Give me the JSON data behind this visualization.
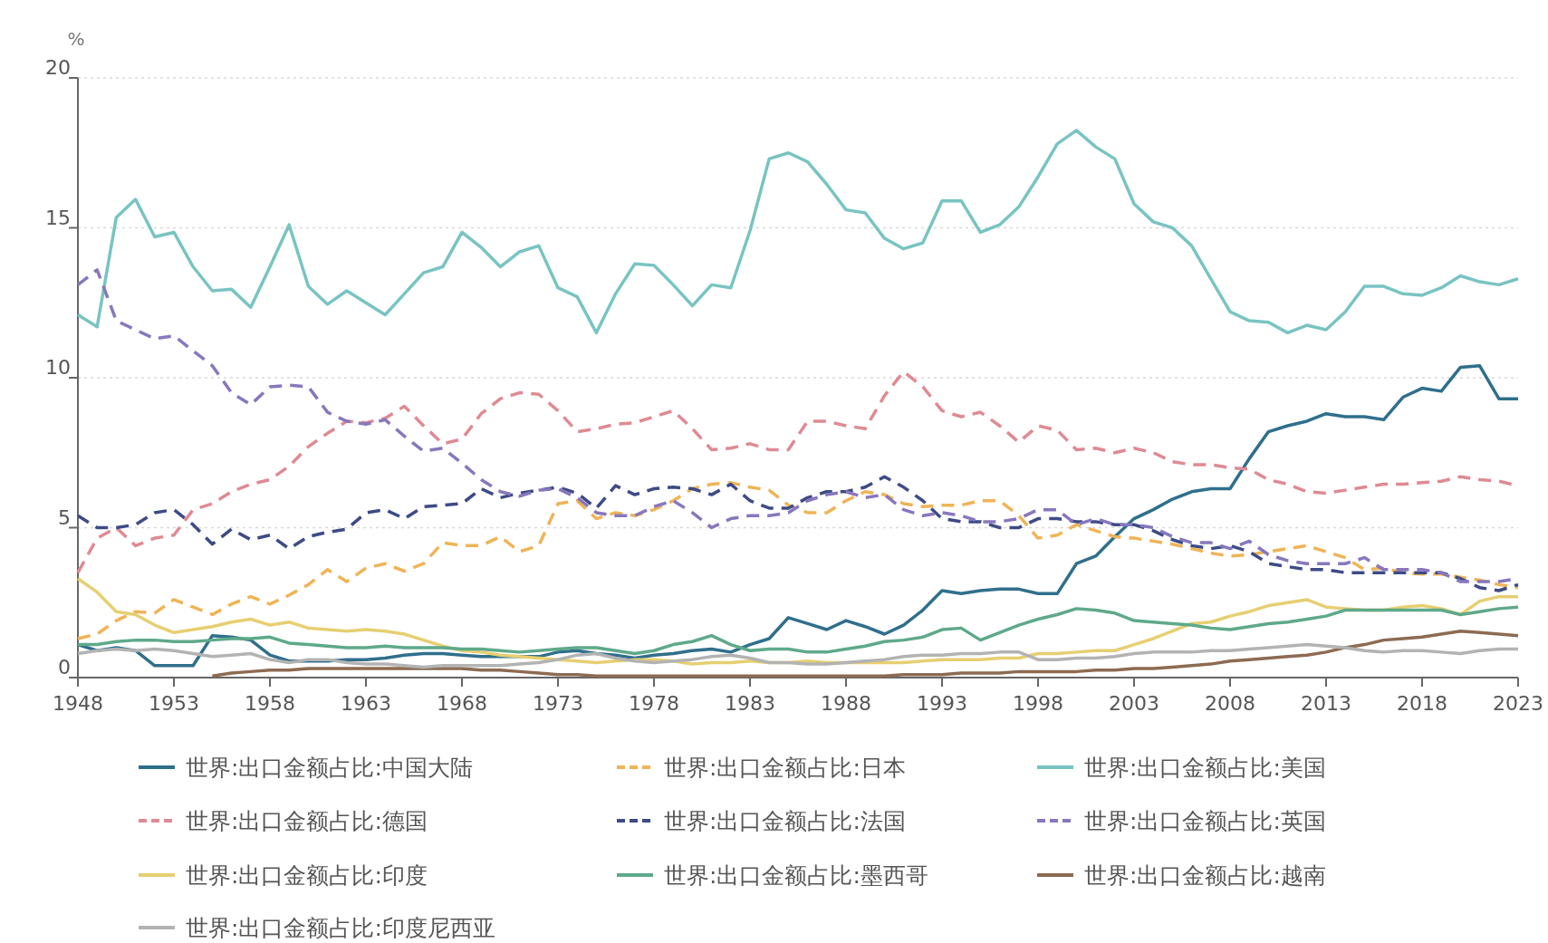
{
  "chart_data": {
    "type": "line",
    "ylabel": "%",
    "xlim": [
      1948,
      2023
    ],
    "xticks": [
      1948,
      1953,
      1958,
      1963,
      1968,
      1973,
      1978,
      1983,
      1988,
      1993,
      1998,
      2003,
      2008,
      2013,
      2018,
      2023
    ],
    "ylim": [
      0,
      20
    ],
    "yticks": [
      0,
      5,
      10,
      15,
      20
    ],
    "grid": "y",
    "legend": "bottom",
    "x": [
      1948,
      1949,
      1950,
      1951,
      1952,
      1953,
      1954,
      1955,
      1956,
      1957,
      1958,
      1959,
      1960,
      1961,
      1962,
      1963,
      1964,
      1965,
      1966,
      1967,
      1968,
      1969,
      1970,
      1971,
      1972,
      1973,
      1974,
      1975,
      1976,
      1977,
      1978,
      1979,
      1980,
      1981,
      1982,
      1983,
      1984,
      1985,
      1986,
      1987,
      1988,
      1989,
      1990,
      1991,
      1992,
      1993,
      1994,
      1995,
      1996,
      1997,
      1998,
      1999,
      2000,
      2001,
      2002,
      2003,
      2004,
      2005,
      2006,
      2007,
      2008,
      2009,
      2010,
      2011,
      2012,
      2013,
      2014,
      2015,
      2016,
      2017,
      2018,
      2019,
      2020,
      2021,
      2022,
      2023
    ],
    "series": [
      {
        "name": "世界:出口金额占比:中国大陆",
        "color": "#2f6f8c",
        "line_style": "solid",
        "values": [
          1.1,
          0.9,
          1.0,
          0.9,
          0.4,
          0.4,
          0.4,
          1.4,
          1.35,
          1.25,
          0.75,
          0.55,
          0.55,
          0.55,
          0.6,
          0.6,
          0.65,
          0.75,
          0.8,
          0.8,
          0.75,
          0.7,
          0.7,
          0.7,
          0.7,
          0.85,
          0.9,
          0.8,
          0.75,
          0.65,
          0.75,
          0.8,
          0.9,
          0.95,
          0.85,
          1.1,
          1.3,
          2.0,
          1.8,
          1.6,
          1.9,
          1.7,
          1.45,
          1.75,
          2.25,
          2.9,
          2.8,
          2.9,
          2.95,
          2.95,
          2.8,
          2.8,
          3.8,
          4.05,
          4.7,
          5.3,
          5.6,
          5.95,
          6.2,
          6.3,
          6.3,
          7.3,
          8.2,
          8.4,
          8.55,
          8.8,
          8.7,
          8.7,
          8.6,
          9.35,
          9.65,
          9.55,
          10.35,
          10.4,
          9.3,
          9.3
        ]
      },
      {
        "name": "世界:出口金额占比:日本",
        "color": "#efb457",
        "line_style": "dashed",
        "values": [
          1.3,
          1.45,
          1.9,
          2.2,
          2.15,
          2.6,
          2.35,
          2.1,
          2.45,
          2.7,
          2.45,
          2.75,
          3.1,
          3.6,
          3.2,
          3.65,
          3.8,
          3.55,
          3.8,
          4.5,
          4.4,
          4.4,
          4.7,
          4.2,
          4.4,
          5.8,
          5.9,
          5.3,
          5.5,
          5.4,
          5.6,
          5.9,
          6.3,
          6.45,
          6.5,
          6.35,
          6.25,
          5.75,
          5.5,
          5.5,
          5.9,
          6.2,
          6.1,
          5.8,
          5.7,
          5.75,
          5.75,
          5.9,
          5.9,
          5.4,
          4.65,
          4.75,
          5.1,
          4.9,
          4.7,
          4.65,
          4.55,
          4.45,
          4.3,
          4.15,
          4.05,
          4.1,
          4.2,
          4.3,
          4.4,
          4.2,
          4.0,
          3.6,
          3.65,
          3.5,
          3.45,
          3.45,
          3.35,
          3.25,
          3.1,
          3.0
        ]
      },
      {
        "name": "世界:出口金额占比:美国",
        "color": "#78c4c2",
        "line_style": "solid",
        "values": [
          12.1,
          11.7,
          15.35,
          15.95,
          14.7,
          14.85,
          13.7,
          12.9,
          12.95,
          12.35,
          13.7,
          15.1,
          13.05,
          12.45,
          12.9,
          12.5,
          12.1,
          12.8,
          13.5,
          13.7,
          14.85,
          14.35,
          13.7,
          14.2,
          14.4,
          13.0,
          12.7,
          11.5,
          12.8,
          13.8,
          13.75,
          13.1,
          12.4,
          13.1,
          13.0,
          14.9,
          17.3,
          17.5,
          17.2,
          16.45,
          15.6,
          15.5,
          14.65,
          14.3,
          14.5,
          15.9,
          15.9,
          14.85,
          15.1,
          15.7,
          16.7,
          17.8,
          18.25,
          17.7,
          17.3,
          15.8,
          15.2,
          15.0,
          14.4,
          13.3,
          12.2,
          11.9,
          11.85,
          11.5,
          11.75,
          11.6,
          12.2,
          13.05,
          13.05,
          12.8,
          12.75,
          13.0,
          13.4,
          13.2,
          13.1,
          13.3
        ]
      },
      {
        "name": "世界:出口金额占比:德国",
        "color": "#df8a93",
        "line_style": "dashed",
        "values": [
          3.5,
          4.65,
          5.0,
          4.4,
          4.65,
          4.75,
          5.6,
          5.8,
          6.2,
          6.45,
          6.6,
          7.05,
          7.7,
          8.15,
          8.55,
          8.5,
          8.65,
          9.05,
          8.4,
          7.8,
          7.95,
          8.8,
          9.3,
          9.5,
          9.45,
          8.9,
          8.2,
          8.3,
          8.45,
          8.5,
          8.7,
          8.9,
          8.3,
          7.6,
          7.65,
          7.8,
          7.6,
          7.6,
          8.55,
          8.55,
          8.4,
          8.3,
          9.4,
          10.2,
          9.7,
          8.9,
          8.7,
          8.85,
          8.4,
          7.85,
          8.4,
          8.25,
          7.6,
          7.65,
          7.5,
          7.65,
          7.5,
          7.2,
          7.1,
          7.1,
          7.0,
          6.95,
          6.6,
          6.45,
          6.2,
          6.15,
          6.25,
          6.35,
          6.45,
          6.45,
          6.5,
          6.55,
          6.7,
          6.6,
          6.55,
          6.4
        ]
      },
      {
        "name": "世界:出口金额占比:法国",
        "color": "#3d4b86",
        "line_style": "dashed",
        "values": [
          5.4,
          5.0,
          5.0,
          5.1,
          5.5,
          5.6,
          5.1,
          4.45,
          4.95,
          4.6,
          4.75,
          4.3,
          4.7,
          4.85,
          4.95,
          5.5,
          5.6,
          5.3,
          5.7,
          5.75,
          5.8,
          6.3,
          6.0,
          6.15,
          6.25,
          6.35,
          6.15,
          5.65,
          6.4,
          6.1,
          6.3,
          6.35,
          6.3,
          6.1,
          6.45,
          5.9,
          5.65,
          5.65,
          6.0,
          6.2,
          6.2,
          6.35,
          6.7,
          6.35,
          5.9,
          5.3,
          5.2,
          5.2,
          5.0,
          5.0,
          5.3,
          5.3,
          5.2,
          5.2,
          5.1,
          5.1,
          4.9,
          4.6,
          4.4,
          4.3,
          4.4,
          4.2,
          3.8,
          3.7,
          3.6,
          3.6,
          3.5,
          3.5,
          3.5,
          3.5,
          3.5,
          3.5,
          3.3,
          3.0,
          2.9,
          3.1
        ]
      },
      {
        "name": "世界:出口金额占比:英国",
        "color": "#8877bd",
        "line_style": "dashed",
        "values": [
          13.1,
          13.6,
          11.9,
          11.6,
          11.3,
          11.4,
          10.9,
          10.4,
          9.5,
          9.1,
          9.7,
          9.75,
          9.7,
          8.85,
          8.55,
          8.45,
          8.6,
          8.05,
          7.55,
          7.65,
          7.15,
          6.6,
          6.2,
          6.05,
          6.25,
          6.3,
          6.0,
          5.5,
          5.4,
          5.4,
          5.7,
          5.9,
          5.5,
          5.0,
          5.3,
          5.4,
          5.4,
          5.5,
          5.9,
          6.1,
          6.2,
          6.0,
          6.1,
          5.6,
          5.4,
          5.5,
          5.4,
          5.2,
          5.2,
          5.3,
          5.6,
          5.6,
          5.1,
          5.3,
          5.1,
          5.1,
          5.0,
          4.7,
          4.5,
          4.5,
          4.3,
          4.55,
          4.1,
          3.9,
          3.8,
          3.8,
          3.8,
          4.0,
          3.6,
          3.6,
          3.6,
          3.5,
          3.2,
          3.2,
          3.2,
          3.3
        ]
      },
      {
        "name": "世界:出口金额占比:印度",
        "color": "#e6cf72",
        "line_style": "solid",
        "values": [
          3.3,
          2.85,
          2.2,
          2.1,
          1.75,
          1.5,
          1.6,
          1.7,
          1.85,
          1.95,
          1.75,
          1.85,
          1.65,
          1.6,
          1.55,
          1.6,
          1.55,
          1.45,
          1.25,
          1.05,
          0.9,
          0.85,
          0.75,
          0.7,
          0.65,
          0.6,
          0.55,
          0.5,
          0.55,
          0.6,
          0.6,
          0.55,
          0.45,
          0.5,
          0.5,
          0.55,
          0.5,
          0.5,
          0.55,
          0.5,
          0.5,
          0.5,
          0.5,
          0.5,
          0.55,
          0.6,
          0.6,
          0.6,
          0.65,
          0.65,
          0.8,
          0.8,
          0.85,
          0.9,
          0.9,
          1.1,
          1.3,
          1.55,
          1.8,
          1.85,
          2.05,
          2.2,
          2.4,
          2.5,
          2.6,
          2.35,
          2.3,
          2.25,
          2.25,
          2.35,
          2.4,
          2.3,
          2.1,
          2.55,
          2.7,
          2.7
        ]
      },
      {
        "name": "世界:出口金额占比:墨西哥",
        "color": "#5ea98a",
        "line_style": "solid",
        "values": [
          1.1,
          1.1,
          1.2,
          1.25,
          1.25,
          1.2,
          1.2,
          1.25,
          1.3,
          1.3,
          1.35,
          1.15,
          1.1,
          1.05,
          1.0,
          1.0,
          1.05,
          1.0,
          1.0,
          1.0,
          0.95,
          0.95,
          0.9,
          0.85,
          0.9,
          0.95,
          1.0,
          1.0,
          0.9,
          0.8,
          0.9,
          1.1,
          1.2,
          1.4,
          1.1,
          0.9,
          0.95,
          0.95,
          0.85,
          0.85,
          0.95,
          1.05,
          1.2,
          1.25,
          1.35,
          1.6,
          1.65,
          1.25,
          1.5,
          1.75,
          1.95,
          2.1,
          2.3,
          2.25,
          2.15,
          1.9,
          1.85,
          1.8,
          1.75,
          1.65,
          1.6,
          1.7,
          1.8,
          1.85,
          1.95,
          2.05,
          2.25,
          2.25,
          2.25,
          2.25,
          2.25,
          2.25,
          2.1,
          2.2,
          2.3,
          2.35
        ]
      },
      {
        "name": "世界:出口金额占比:越南",
        "color": "#8c6b52",
        "line_style": "solid",
        "values": [
          null,
          null,
          null,
          null,
          null,
          null,
          null,
          0.05,
          0.15,
          0.2,
          0.25,
          0.25,
          0.3,
          0.3,
          0.3,
          0.3,
          0.3,
          0.3,
          0.3,
          0.3,
          0.3,
          0.25,
          0.25,
          0.2,
          0.15,
          0.1,
          0.1,
          0.05,
          0.05,
          0.05,
          0.05,
          0.05,
          0.05,
          0.05,
          0.05,
          0.05,
          0.05,
          0.05,
          0.05,
          0.05,
          0.05,
          0.05,
          0.05,
          0.1,
          0.1,
          0.1,
          0.15,
          0.15,
          0.15,
          0.2,
          0.2,
          0.2,
          0.2,
          0.25,
          0.25,
          0.3,
          0.3,
          0.35,
          0.4,
          0.45,
          0.55,
          0.6,
          0.65,
          0.7,
          0.75,
          0.85,
          1.0,
          1.1,
          1.25,
          1.3,
          1.35,
          1.45,
          1.55,
          1.5,
          1.45,
          1.4
        ]
      },
      {
        "name": "世界:出口金额占比:印度尼西亚",
        "color": "#b3b3b3",
        "line_style": "solid",
        "values": [
          0.8,
          0.9,
          0.95,
          0.9,
          0.95,
          0.9,
          0.8,
          0.7,
          0.75,
          0.8,
          0.6,
          0.5,
          0.6,
          0.6,
          0.5,
          0.45,
          0.45,
          0.4,
          0.35,
          0.4,
          0.4,
          0.4,
          0.4,
          0.45,
          0.5,
          0.6,
          0.75,
          0.8,
          0.65,
          0.55,
          0.5,
          0.55,
          0.6,
          0.7,
          0.75,
          0.65,
          0.5,
          0.5,
          0.45,
          0.45,
          0.5,
          0.55,
          0.6,
          0.7,
          0.75,
          0.75,
          0.8,
          0.8,
          0.85,
          0.85,
          0.6,
          0.6,
          0.65,
          0.65,
          0.7,
          0.8,
          0.85,
          0.85,
          0.85,
          0.9,
          0.9,
          0.95,
          1.0,
          1.05,
          1.1,
          1.05,
          1.0,
          0.9,
          0.85,
          0.9,
          0.9,
          0.85,
          0.8,
          0.9,
          0.95,
          0.95
        ]
      }
    ]
  }
}
